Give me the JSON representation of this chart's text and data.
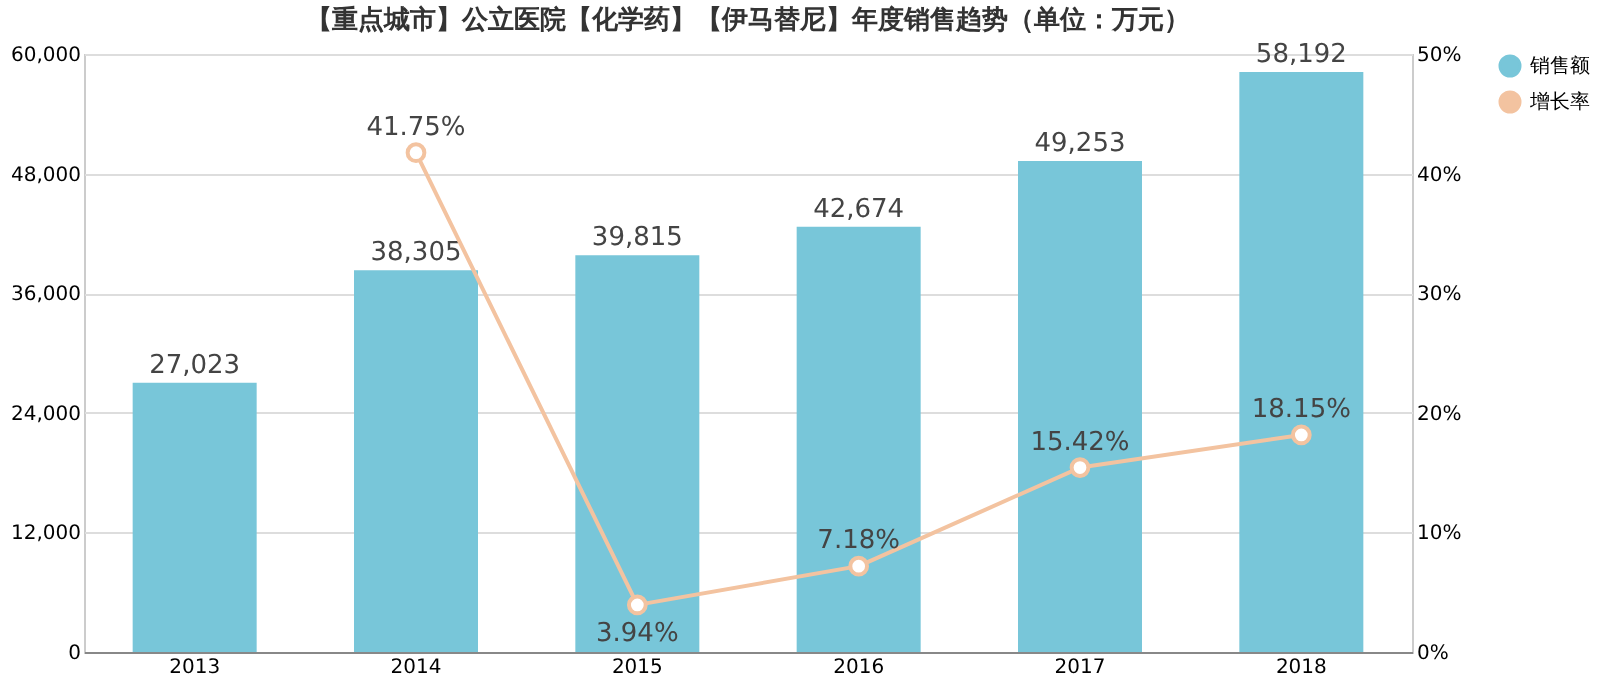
{
  "chart_data": {
    "type": "bar",
    "title": "【重点城市】公立医院【化学药】【伊马替尼】年度销售趋势（单位：万元）",
    "categories": [
      "2013",
      "2014",
      "2015",
      "2016",
      "2017",
      "2018"
    ],
    "series": [
      {
        "name": "销售额",
        "color": "#78c6d9",
        "values": [
          27023,
          38305,
          39815,
          42674,
          49253,
          58192
        ],
        "value_labels": [
          "27,023",
          "38,305",
          "39,815",
          "42,674",
          "49,253",
          "58,192"
        ]
      },
      {
        "name": "增长率",
        "type": "line",
        "axis": "y2",
        "color": "#f3c3a0",
        "marker": "circle",
        "values": [
          null,
          41.75,
          3.94,
          7.18,
          15.42,
          18.15
        ],
        "value_labels": [
          null,
          "41.75%",
          "3.94%",
          "7.18%",
          "15.42%",
          "18.15%"
        ]
      }
    ],
    "ylim": [
      0,
      60000
    ],
    "yticks": [
      {
        "value": 0,
        "label": "0"
      },
      {
        "value": 12000,
        "label": "12,000"
      },
      {
        "value": 24000,
        "label": "24,000"
      },
      {
        "value": 36000,
        "label": "36,000"
      },
      {
        "value": 48000,
        "label": "48,000"
      },
      {
        "value": 60000,
        "label": "60,000"
      }
    ],
    "y2lim": [
      0,
      50
    ],
    "y2ticks": [
      {
        "value": 0,
        "label": "0%"
      },
      {
        "value": 10,
        "label": "10%"
      },
      {
        "value": 20,
        "label": "20%"
      },
      {
        "value": 30,
        "label": "30%"
      },
      {
        "value": 40,
        "label": "40%"
      },
      {
        "value": 50,
        "label": "50%"
      }
    ],
    "grid": "y",
    "legend": "right"
  }
}
